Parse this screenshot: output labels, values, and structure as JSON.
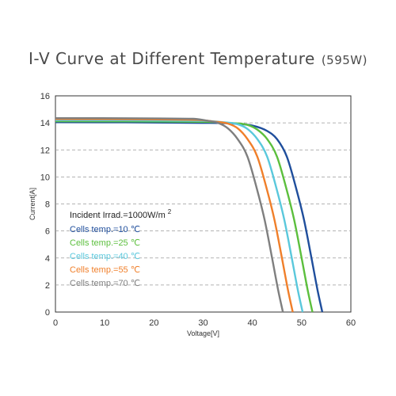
{
  "chart_data": {
    "type": "line",
    "title": "I-V Curve at Different Temperature",
    "subtitle": "(595W)",
    "xlabel": "Voltage[V]",
    "ylabel": "Current[A]",
    "xlim": [
      0,
      60
    ],
    "ylim": [
      0,
      16
    ],
    "xticks": [
      0,
      10,
      20,
      30,
      40,
      50,
      60
    ],
    "yticks": [
      0,
      2,
      4,
      6,
      8,
      10,
      12,
      14,
      16
    ],
    "grid": "horizontal dashed",
    "annotation": "Incident Irrad.=1000W/m",
    "annotation_sup": "2",
    "series": [
      {
        "name": "Cells temp.=10 ℃",
        "color": "#1f4e9c",
        "x": [
          0,
          30,
          36,
          40,
          43,
          45,
          47,
          49,
          50.5,
          52,
          53.3,
          54.2
        ],
        "y": [
          14.05,
          14.0,
          13.95,
          13.8,
          13.4,
          12.8,
          11.5,
          9.0,
          6.8,
          4.0,
          1.5,
          0
        ]
      },
      {
        "name": "Cells temp.=25 ℃",
        "color": "#5cbf3d",
        "x": [
          0,
          30,
          35,
          39,
          41,
          43,
          45,
          47,
          48.5,
          50,
          51.3,
          52.2
        ],
        "y": [
          14.12,
          14.08,
          14.0,
          13.85,
          13.5,
          12.8,
          11.5,
          9.0,
          6.8,
          4.0,
          1.5,
          0
        ]
      },
      {
        "name": "Cells temp.=40 ℃",
        "color": "#5ac8dc",
        "x": [
          0,
          30,
          34,
          37,
          39,
          41,
          43,
          45,
          46.5,
          48,
          49.3,
          50.2
        ],
        "y": [
          14.2,
          14.15,
          14.05,
          13.9,
          13.55,
          12.8,
          11.5,
          9.0,
          6.8,
          4.0,
          1.5,
          0
        ]
      },
      {
        "name": "Cells temp.=55 ℃",
        "color": "#f07f2a",
        "x": [
          0,
          29,
          32,
          35,
          37,
          39,
          41,
          43,
          44.5,
          46,
          47.3,
          48.2
        ],
        "y": [
          14.28,
          14.22,
          14.1,
          13.95,
          13.6,
          12.8,
          11.5,
          9.0,
          6.8,
          4.0,
          1.5,
          0
        ]
      },
      {
        "name": "Cells temp.=70 ℃",
        "color": "#7f7f7f",
        "x": [
          0,
          28,
          31,
          33,
          35,
          37,
          39,
          41,
          42.5,
          44,
          45.3,
          46.2
        ],
        "y": [
          14.35,
          14.3,
          14.15,
          14.0,
          13.6,
          12.8,
          11.5,
          9.0,
          6.8,
          4.0,
          1.5,
          0
        ]
      }
    ]
  }
}
